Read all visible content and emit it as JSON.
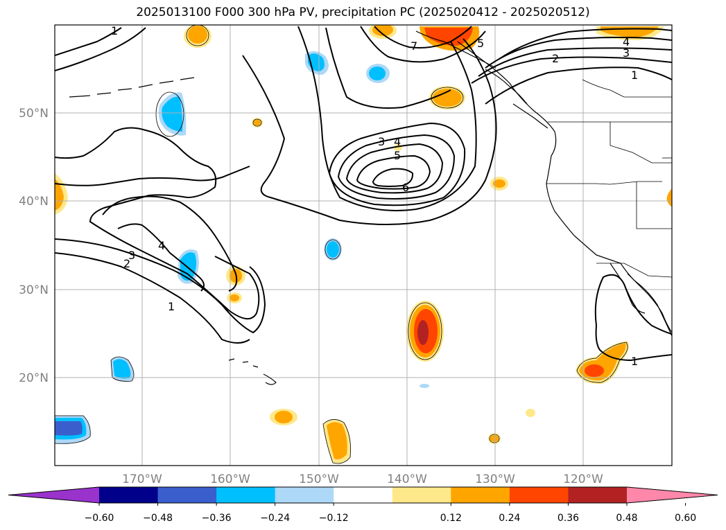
{
  "title": "2025013100 F000 300 hPa PV, precipitation PC (2025020412 - 2025020512)",
  "lat_labels": [
    "50°N",
    "40°N",
    "30°N",
    "20°N"
  ],
  "lon_labels": [
    "170°W",
    "160°W",
    "150°W",
    "140°W",
    "130°W",
    "120°W"
  ],
  "contour_labels": [
    "1",
    "2",
    "3",
    "4",
    "5",
    "6",
    "7"
  ],
  "colorbar": {
    "ticks": [
      "−0.60",
      "−0.48",
      "−0.36",
      "−0.24",
      "−0.12",
      "0.12",
      "0.24",
      "0.36",
      "0.48",
      "0.60"
    ],
    "colors": [
      "#9933cc",
      "#00008b",
      "#3a5fcd",
      "#00bfff",
      "#add8f7",
      "#ffffff",
      "#ffe88a",
      "#ffa500",
      "#ff4500",
      "#b22222",
      "#ff88aa"
    ]
  }
}
